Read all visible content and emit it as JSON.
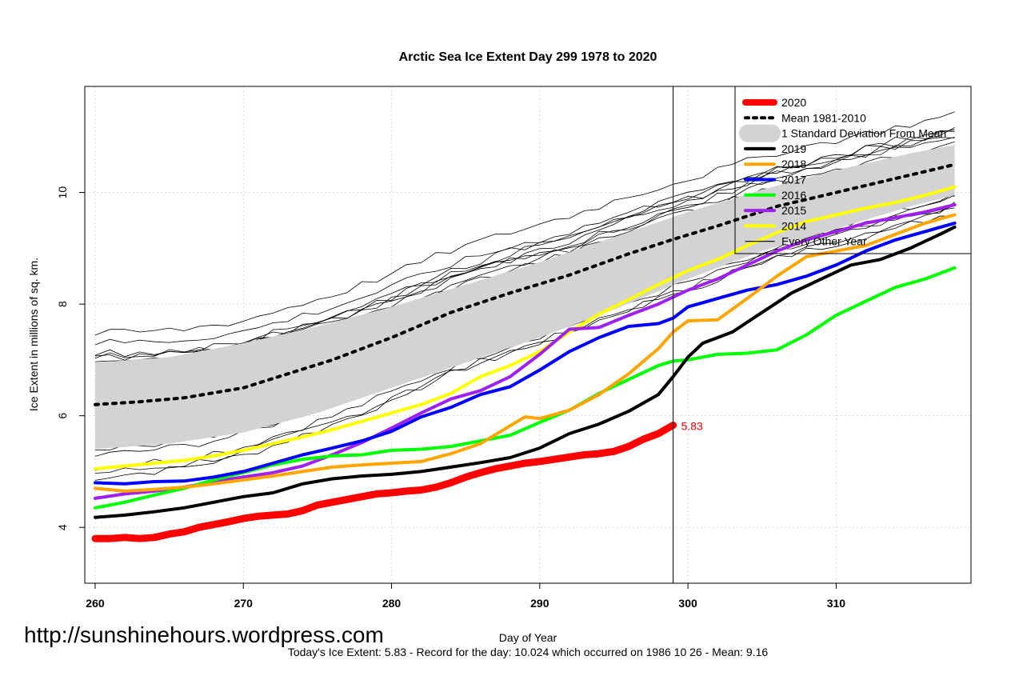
{
  "watermark": "http://sunshinehours.wordpress.com",
  "footer": "Today's Ice Extent: 5.83  - Record for the day: 10.024 which occurred on 1986 10 26  - Mean: 9.16",
  "chart_data": {
    "type": "line",
    "title": "Arctic Sea Ice Extent Day 299 1978 to 2020",
    "xlabel": "Day of Year",
    "ylabel": "Ice Extent in millions of sq. km.",
    "xlim": [
      259.3,
      319.1
    ],
    "ylim": [
      3.0,
      11.9
    ],
    "x_ticks": [
      260,
      270,
      280,
      290,
      300,
      310
    ],
    "y_ticks": [
      4,
      6,
      8,
      10
    ],
    "grid": true,
    "current_day": 299,
    "current_value_label": "5.83",
    "legend": {
      "position": "top-right",
      "entries": [
        {
          "label": "2020",
          "color": "#ff0000",
          "style": "thick"
        },
        {
          "label": "Mean 1981-2010",
          "color": "#000000",
          "style": "dotted"
        },
        {
          "label": "1 Standard Deviation From Mean",
          "color": "#d3d3d3",
          "style": "band"
        },
        {
          "label": "2019",
          "color": "#000000",
          "style": "solid"
        },
        {
          "label": "2018",
          "color": "#ffa500",
          "style": "solid"
        },
        {
          "label": "2017",
          "color": "#0000ff",
          "style": "solid"
        },
        {
          "label": "2016",
          "color": "#00ff00",
          "style": "solid"
        },
        {
          "label": "2015",
          "color": "#a020f0",
          "style": "solid"
        },
        {
          "label": "2014",
          "color": "#ffff00",
          "style": "solid"
        },
        {
          "label": "Every Other Year",
          "color": "#000000",
          "style": "thin"
        }
      ]
    },
    "std_band": {
      "upper": [
        [
          260,
          6.95
        ],
        [
          265,
          7.05
        ],
        [
          270,
          7.3
        ],
        [
          275,
          7.6
        ],
        [
          280,
          7.95
        ],
        [
          285,
          8.35
        ],
        [
          290,
          8.75
        ],
        [
          295,
          9.2
        ],
        [
          300,
          9.65
        ],
        [
          305,
          10.05
        ],
        [
          310,
          10.4
        ],
        [
          315,
          10.7
        ],
        [
          318,
          10.85
        ]
      ],
      "lower": [
        [
          260,
          5.4
        ],
        [
          265,
          5.5
        ],
        [
          270,
          5.7
        ],
        [
          275,
          6.05
        ],
        [
          280,
          6.5
        ],
        [
          285,
          6.95
        ],
        [
          290,
          7.4
        ],
        [
          295,
          7.9
        ],
        [
          300,
          8.45
        ],
        [
          305,
          8.95
        ],
        [
          310,
          9.35
        ],
        [
          315,
          9.75
        ],
        [
          318,
          9.95
        ]
      ]
    },
    "series": [
      {
        "name": "Mean 1981-2010",
        "color": "#000000",
        "dash": "dotted",
        "width": 4,
        "points": [
          [
            260,
            6.2
          ],
          [
            263,
            6.25
          ],
          [
            266,
            6.32
          ],
          [
            270,
            6.5
          ],
          [
            273,
            6.75
          ],
          [
            276,
            7.0
          ],
          [
            280,
            7.4
          ],
          [
            284,
            7.85
          ],
          [
            288,
            8.2
          ],
          [
            292,
            8.52
          ],
          [
            296,
            8.9
          ],
          [
            299,
            9.16
          ],
          [
            302,
            9.4
          ],
          [
            306,
            9.75
          ],
          [
            310,
            10.0
          ],
          [
            314,
            10.25
          ],
          [
            318,
            10.5
          ]
        ]
      },
      {
        "name": "2020",
        "color": "#ff0000",
        "width": 9,
        "points": [
          [
            260,
            3.8
          ],
          [
            261,
            3.8
          ],
          [
            262,
            3.82
          ],
          [
            263,
            3.8
          ],
          [
            264,
            3.82
          ],
          [
            265,
            3.88
          ],
          [
            266,
            3.92
          ],
          [
            267,
            4.0
          ],
          [
            268,
            4.05
          ],
          [
            269,
            4.1
          ],
          [
            270,
            4.16
          ],
          [
            271,
            4.2
          ],
          [
            272,
            4.22
          ],
          [
            273,
            4.24
          ],
          [
            274,
            4.3
          ],
          [
            275,
            4.4
          ],
          [
            276,
            4.45
          ],
          [
            277,
            4.5
          ],
          [
            278,
            4.55
          ],
          [
            279,
            4.6
          ],
          [
            280,
            4.62
          ],
          [
            281,
            4.65
          ],
          [
            282,
            4.67
          ],
          [
            283,
            4.72
          ],
          [
            284,
            4.8
          ],
          [
            285,
            4.9
          ],
          [
            286,
            4.98
          ],
          [
            287,
            5.05
          ],
          [
            288,
            5.1
          ],
          [
            289,
            5.15
          ],
          [
            290,
            5.18
          ],
          [
            291,
            5.22
          ],
          [
            292,
            5.26
          ],
          [
            293,
            5.3
          ],
          [
            294,
            5.32
          ],
          [
            295,
            5.36
          ],
          [
            296,
            5.45
          ],
          [
            297,
            5.58
          ],
          [
            298,
            5.68
          ],
          [
            299,
            5.83
          ]
        ]
      },
      {
        "name": "2019",
        "color": "#000000",
        "width": 4,
        "points": [
          [
            260,
            4.18
          ],
          [
            262,
            4.22
          ],
          [
            264,
            4.28
          ],
          [
            266,
            4.35
          ],
          [
            268,
            4.45
          ],
          [
            270,
            4.55
          ],
          [
            272,
            4.62
          ],
          [
            274,
            4.78
          ],
          [
            276,
            4.87
          ],
          [
            278,
            4.92
          ],
          [
            280,
            4.95
          ],
          [
            282,
            5.0
          ],
          [
            284,
            5.08
          ],
          [
            286,
            5.16
          ],
          [
            288,
            5.25
          ],
          [
            290,
            5.42
          ],
          [
            292,
            5.68
          ],
          [
            294,
            5.85
          ],
          [
            296,
            6.08
          ],
          [
            298,
            6.38
          ],
          [
            299,
            6.7
          ],
          [
            300,
            7.05
          ],
          [
            301,
            7.3
          ],
          [
            303,
            7.5
          ],
          [
            305,
            7.85
          ],
          [
            307,
            8.2
          ],
          [
            309,
            8.45
          ],
          [
            311,
            8.7
          ],
          [
            313,
            8.8
          ],
          [
            315,
            9.0
          ],
          [
            317,
            9.25
          ],
          [
            318,
            9.38
          ]
        ]
      },
      {
        "name": "2018",
        "color": "#ffa500",
        "width": 4,
        "points": [
          [
            260,
            4.7
          ],
          [
            262,
            4.65
          ],
          [
            264,
            4.68
          ],
          [
            266,
            4.72
          ],
          [
            268,
            4.78
          ],
          [
            270,
            4.85
          ],
          [
            272,
            4.92
          ],
          [
            274,
            5.0
          ],
          [
            276,
            5.08
          ],
          [
            278,
            5.12
          ],
          [
            280,
            5.15
          ],
          [
            282,
            5.18
          ],
          [
            284,
            5.32
          ],
          [
            286,
            5.5
          ],
          [
            288,
            5.82
          ],
          [
            289,
            5.98
          ],
          [
            290,
            5.95
          ],
          [
            292,
            6.1
          ],
          [
            294,
            6.38
          ],
          [
            296,
            6.75
          ],
          [
            298,
            7.2
          ],
          [
            299,
            7.5
          ],
          [
            300,
            7.7
          ],
          [
            302,
            7.72
          ],
          [
            304,
            8.1
          ],
          [
            306,
            8.5
          ],
          [
            308,
            8.85
          ],
          [
            310,
            8.95
          ],
          [
            312,
            9.05
          ],
          [
            314,
            9.25
          ],
          [
            316,
            9.45
          ],
          [
            318,
            9.6
          ]
        ]
      },
      {
        "name": "2017",
        "color": "#0000ff",
        "width": 4,
        "points": [
          [
            260,
            4.8
          ],
          [
            262,
            4.78
          ],
          [
            264,
            4.82
          ],
          [
            266,
            4.83
          ],
          [
            268,
            4.9
          ],
          [
            270,
            5.0
          ],
          [
            272,
            5.15
          ],
          [
            274,
            5.3
          ],
          [
            276,
            5.42
          ],
          [
            278,
            5.55
          ],
          [
            280,
            5.72
          ],
          [
            282,
            5.98
          ],
          [
            284,
            6.15
          ],
          [
            286,
            6.38
          ],
          [
            288,
            6.52
          ],
          [
            290,
            6.82
          ],
          [
            292,
            7.15
          ],
          [
            294,
            7.4
          ],
          [
            296,
            7.6
          ],
          [
            298,
            7.65
          ],
          [
            299,
            7.75
          ],
          [
            300,
            7.95
          ],
          [
            302,
            8.1
          ],
          [
            304,
            8.25
          ],
          [
            306,
            8.35
          ],
          [
            308,
            8.5
          ],
          [
            310,
            8.7
          ],
          [
            312,
            8.95
          ],
          [
            314,
            9.15
          ],
          [
            316,
            9.3
          ],
          [
            318,
            9.45
          ]
        ]
      },
      {
        "name": "2016",
        "color": "#00ff00",
        "width": 4,
        "points": [
          [
            260,
            4.35
          ],
          [
            262,
            4.45
          ],
          [
            264,
            4.58
          ],
          [
            266,
            4.7
          ],
          [
            268,
            4.85
          ],
          [
            270,
            4.98
          ],
          [
            272,
            5.12
          ],
          [
            274,
            5.22
          ],
          [
            276,
            5.28
          ],
          [
            278,
            5.3
          ],
          [
            280,
            5.38
          ],
          [
            282,
            5.4
          ],
          [
            284,
            5.45
          ],
          [
            286,
            5.55
          ],
          [
            288,
            5.65
          ],
          [
            290,
            5.88
          ],
          [
            292,
            6.1
          ],
          [
            294,
            6.4
          ],
          [
            296,
            6.65
          ],
          [
            298,
            6.9
          ],
          [
            299,
            6.98
          ],
          [
            300,
            7.0
          ],
          [
            302,
            7.1
          ],
          [
            304,
            7.12
          ],
          [
            306,
            7.18
          ],
          [
            308,
            7.45
          ],
          [
            310,
            7.8
          ],
          [
            312,
            8.05
          ],
          [
            314,
            8.3
          ],
          [
            316,
            8.45
          ],
          [
            318,
            8.65
          ]
        ]
      },
      {
        "name": "2015",
        "color": "#a020f0",
        "width": 4,
        "points": [
          [
            260,
            4.52
          ],
          [
            262,
            4.6
          ],
          [
            264,
            4.65
          ],
          [
            266,
            4.72
          ],
          [
            268,
            4.82
          ],
          [
            270,
            4.9
          ],
          [
            272,
            4.98
          ],
          [
            274,
            5.1
          ],
          [
            276,
            5.3
          ],
          [
            278,
            5.52
          ],
          [
            280,
            5.78
          ],
          [
            282,
            6.05
          ],
          [
            284,
            6.3
          ],
          [
            286,
            6.45
          ],
          [
            288,
            6.7
          ],
          [
            290,
            7.1
          ],
          [
            292,
            7.55
          ],
          [
            294,
            7.58
          ],
          [
            296,
            7.8
          ],
          [
            298,
            8.0
          ],
          [
            300,
            8.25
          ],
          [
            302,
            8.45
          ],
          [
            304,
            8.7
          ],
          [
            306,
            8.95
          ],
          [
            308,
            9.15
          ],
          [
            310,
            9.3
          ],
          [
            312,
            9.45
          ],
          [
            314,
            9.55
          ],
          [
            316,
            9.65
          ],
          [
            318,
            9.78
          ]
        ]
      },
      {
        "name": "2014",
        "color": "#ffff00",
        "width": 4,
        "points": [
          [
            260,
            5.05
          ],
          [
            262,
            5.1
          ],
          [
            264,
            5.15
          ],
          [
            266,
            5.2
          ],
          [
            268,
            5.28
          ],
          [
            270,
            5.38
          ],
          [
            272,
            5.5
          ],
          [
            274,
            5.62
          ],
          [
            276,
            5.75
          ],
          [
            278,
            5.9
          ],
          [
            280,
            6.05
          ],
          [
            282,
            6.2
          ],
          [
            284,
            6.4
          ],
          [
            286,
            6.7
          ],
          [
            288,
            6.9
          ],
          [
            290,
            7.15
          ],
          [
            292,
            7.5
          ],
          [
            294,
            7.82
          ],
          [
            296,
            8.08
          ],
          [
            298,
            8.35
          ],
          [
            300,
            8.6
          ],
          [
            302,
            8.8
          ],
          [
            304,
            9.05
          ],
          [
            306,
            9.28
          ],
          [
            308,
            9.48
          ],
          [
            310,
            9.6
          ],
          [
            312,
            9.72
          ],
          [
            314,
            9.82
          ],
          [
            316,
            9.95
          ],
          [
            318,
            10.1
          ]
        ]
      }
    ]
  }
}
